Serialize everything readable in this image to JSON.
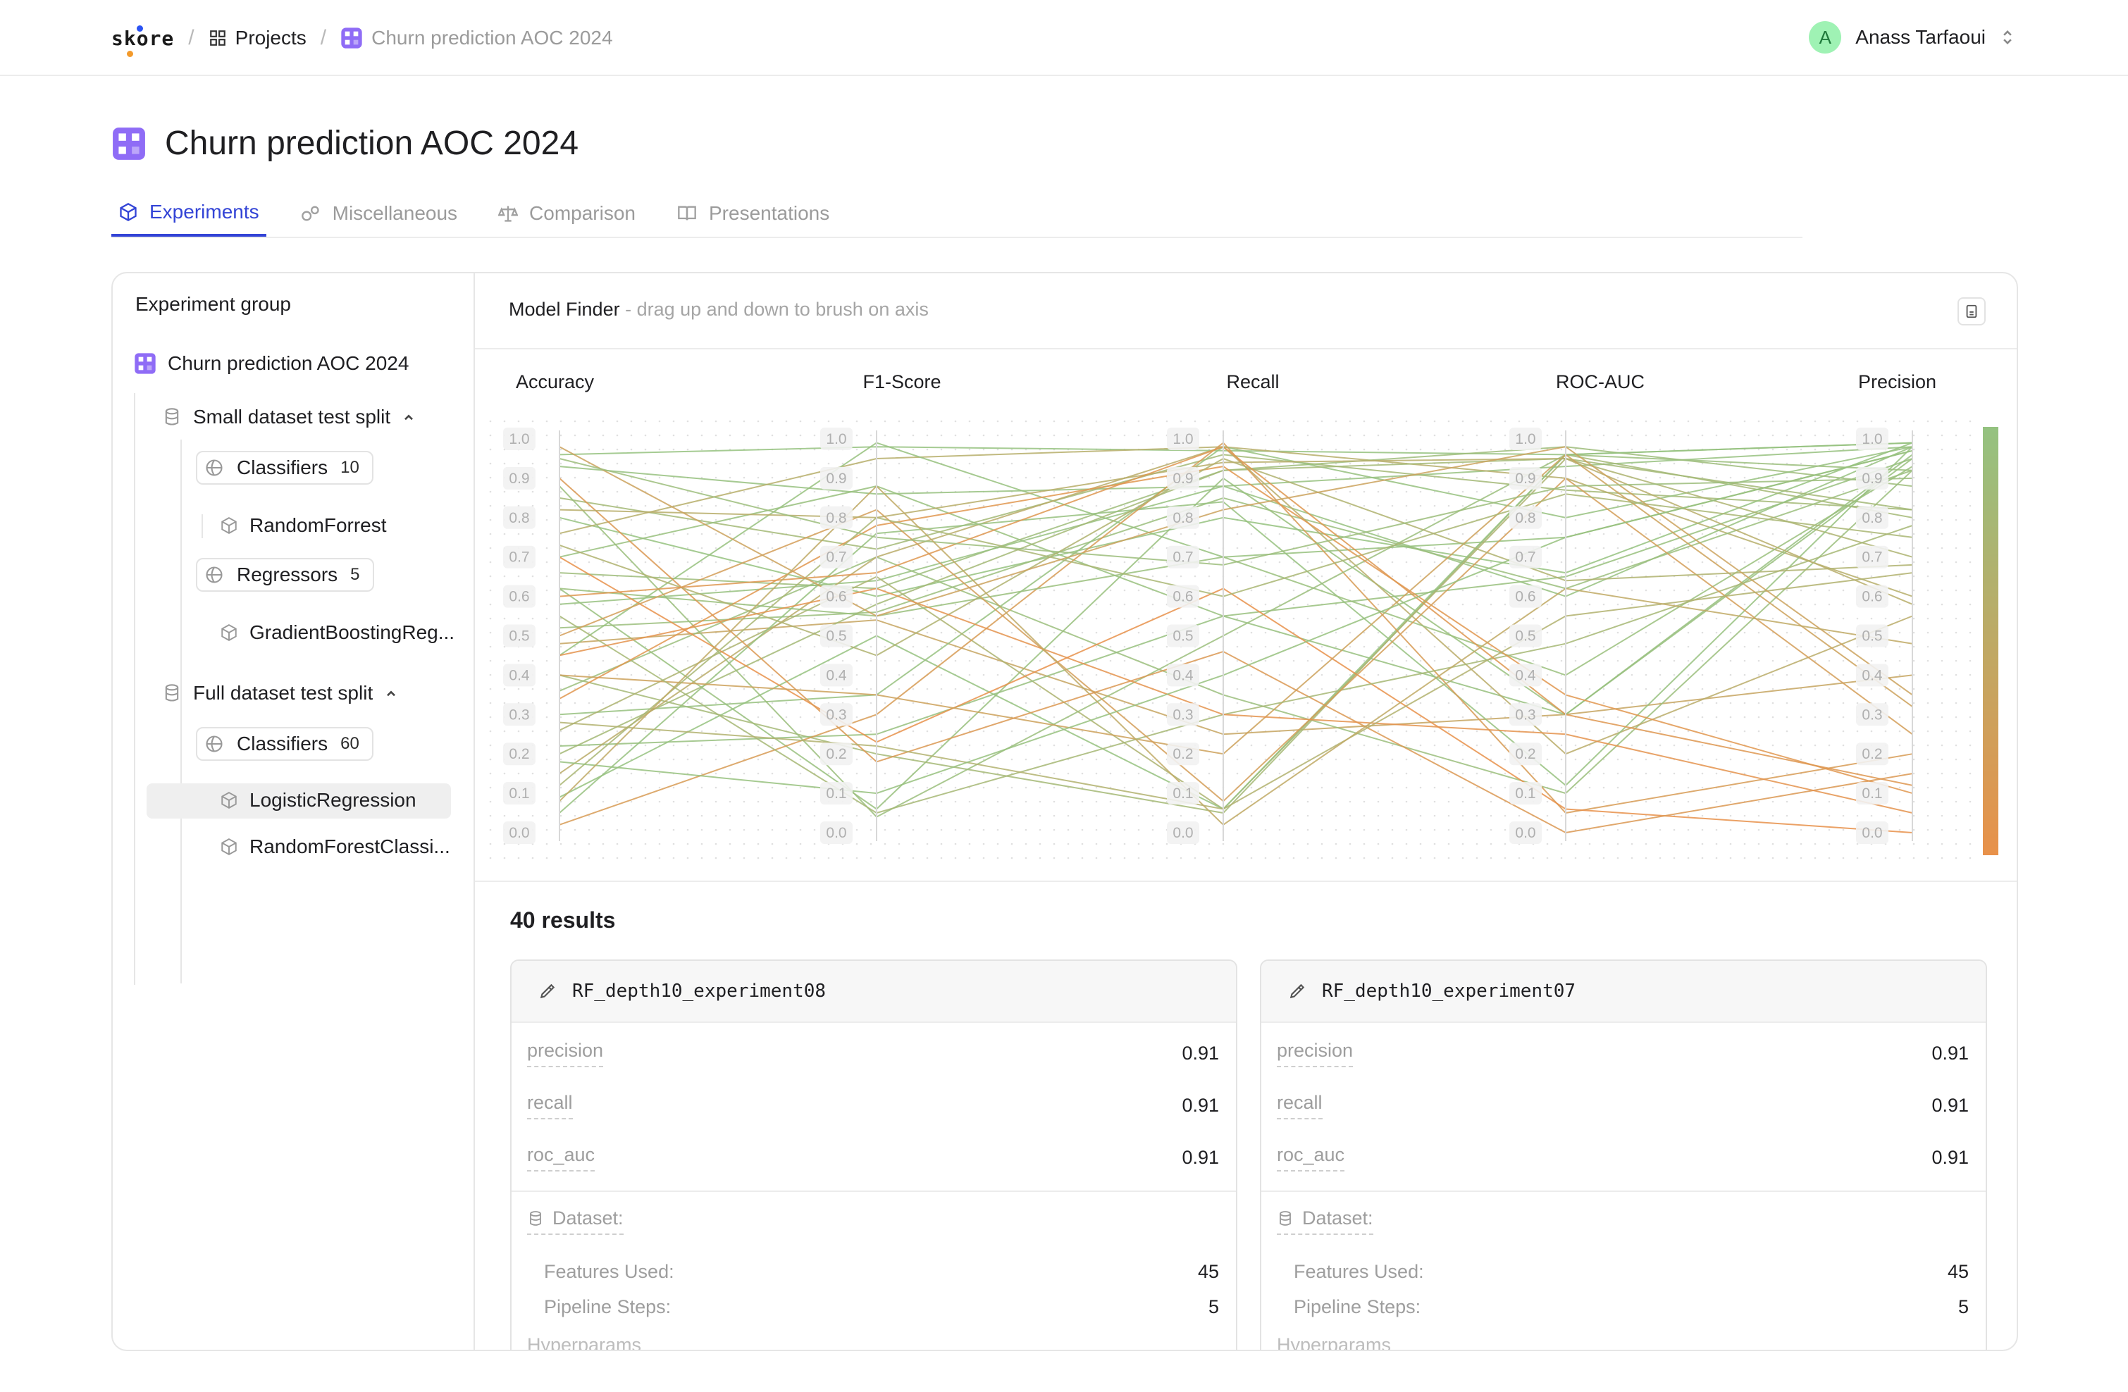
{
  "header": {
    "logo": "skore",
    "crumbs": [
      "Projects",
      "Churn prediction AOC 2024"
    ],
    "separator": "/",
    "user_initial": "A",
    "user_name": "Anass Tarfaoui"
  },
  "page": {
    "title": "Churn prediction AOC 2024",
    "tabs": [
      "Experiments",
      "Miscellaneous",
      "Comparison",
      "Presentations"
    ]
  },
  "sidebar": {
    "heading": "Experiment group",
    "root": "Churn prediction AOC 2024",
    "groups": [
      {
        "name": "Small dataset test split",
        "collections": [
          {
            "name": "Classifiers",
            "count": "10",
            "items": [
              "RandomForrest"
            ]
          },
          {
            "name": "Regressors",
            "count": "5",
            "items": [
              "GradientBoostingReg..."
            ]
          }
        ]
      },
      {
        "name": "Full dataset test split",
        "collections": [
          {
            "name": "Classifiers",
            "count": "60",
            "items": [
              "LogisticRegression",
              "RandomForestClassi..."
            ]
          }
        ]
      }
    ]
  },
  "model_finder": {
    "title": "Model Finder",
    "hint": " - drag up and down to brush on axis"
  },
  "chart_data": {
    "type": "parallel-coordinates",
    "axes": [
      "Accuracy",
      "F1-Score",
      "Recall",
      "ROC-AUC",
      "Precision"
    ],
    "ticks": [
      "1.0",
      "0.9",
      "0.8",
      "0.7",
      "0.6",
      "0.5",
      "0.4",
      "0.3",
      "0.2",
      "0.1",
      "0.0"
    ],
    "range": [
      0,
      1
    ],
    "color_scale": [
      "#e8914a",
      "#94c280"
    ],
    "lines": [
      [
        0.96,
        0.98,
        0.97,
        0.96,
        0.99
      ],
      [
        0.93,
        0.86,
        0.88,
        0.93,
        0.98
      ],
      [
        0.85,
        0.72,
        0.96,
        0.87,
        0.82
      ],
      [
        0.8,
        0.6,
        0.8,
        0.66,
        0.99
      ],
      [
        0.76,
        0.95,
        0.98,
        0.9,
        0.6
      ],
      [
        0.7,
        0.88,
        0.55,
        0.65,
        0.95
      ],
      [
        0.66,
        0.62,
        0.92,
        0.98,
        0.88
      ],
      [
        0.62,
        0.06,
        0.9,
        0.3,
        0.95
      ],
      [
        0.58,
        0.64,
        0.88,
        0.6,
        0.98
      ],
      [
        0.52,
        0.56,
        0.85,
        0.62,
        0.92
      ],
      [
        0.48,
        0.54,
        0.25,
        0.3,
        0.4
      ],
      [
        0.45,
        0.99,
        0.7,
        0.75,
        0.97
      ],
      [
        0.4,
        0.2,
        0.05,
        0.96,
        0.8
      ],
      [
        0.36,
        0.7,
        0.35,
        0.1,
        0.92
      ],
      [
        0.3,
        0.35,
        0.98,
        0.8,
        0.98
      ],
      [
        0.26,
        0.65,
        0.06,
        0.95,
        0.7
      ],
      [
        0.22,
        0.25,
        0.55,
        0.3,
        0.96
      ],
      [
        0.2,
        0.58,
        0.92,
        0.95,
        0.82
      ],
      [
        0.15,
        0.7,
        0.98,
        0.2,
        0.55
      ],
      [
        0.09,
        0.5,
        0.06,
        0.96,
        0.99
      ],
      [
        0.05,
        0.76,
        0.84,
        0.12,
        0.98
      ],
      [
        0.02,
        0.3,
        0.99,
        0.05,
        0.2
      ],
      [
        0.88,
        0.04,
        0.5,
        0.96,
        0.92
      ],
      [
        0.7,
        0.23,
        0.62,
        0.06,
        0.0
      ],
      [
        0.4,
        0.35,
        0.2,
        0.96,
        0.32
      ],
      [
        0.62,
        0.55,
        0.7,
        0.4,
        0.93
      ],
      [
        0.9,
        0.18,
        0.46,
        0.0,
        0.15
      ],
      [
        0.55,
        0.05,
        0.3,
        0.48,
        0.78
      ],
      [
        0.34,
        0.78,
        0.93,
        0.35,
        0.1
      ],
      [
        0.5,
        0.82,
        0.08,
        0.9,
        0.25
      ],
      [
        0.12,
        0.8,
        0.6,
        0.86,
        0.75
      ],
      [
        0.73,
        0.45,
        0.95,
        0.64,
        0.68
      ],
      [
        0.45,
        0.62,
        0.3,
        0.25,
        0.05
      ],
      [
        0.82,
        0.8,
        0.94,
        0.95,
        0.58
      ],
      [
        0.28,
        0.22,
        0.06,
        0.55,
        0.66
      ],
      [
        0.6,
        0.66,
        0.98,
        0.3,
        0.12
      ],
      [
        0.98,
        0.55,
        0.82,
        0.98,
        0.35
      ],
      [
        0.18,
        0.1,
        0.4,
        0.75,
        0.97
      ],
      [
        0.95,
        0.75,
        0.68,
        0.88,
        0.9
      ],
      [
        0.08,
        0.88,
        0.02,
        0.62,
        0.48
      ]
    ]
  },
  "results": {
    "heading": "40 results",
    "cards": [
      {
        "name": "RF_depth10_experiment08",
        "metrics": [
          {
            "k": "precision",
            "v": "0.91"
          },
          {
            "k": "recall",
            "v": "0.91"
          },
          {
            "k": "roc_auc",
            "v": "0.91"
          }
        ],
        "dataset_label": "Dataset:",
        "features_label": "Features Used:",
        "features_value": "45",
        "steps_label": "Pipeline Steps:",
        "steps_value": "5",
        "hyper_label": "Hyperparams"
      },
      {
        "name": "RF_depth10_experiment07",
        "metrics": [
          {
            "k": "precision",
            "v": "0.91"
          },
          {
            "k": "recall",
            "v": "0.91"
          },
          {
            "k": "roc_auc",
            "v": "0.91"
          }
        ],
        "dataset_label": "Dataset:",
        "features_label": "Features Used:",
        "features_value": "45",
        "steps_label": "Pipeline Steps:",
        "steps_value": "5",
        "hyper_label": "Hyperparams"
      }
    ]
  }
}
